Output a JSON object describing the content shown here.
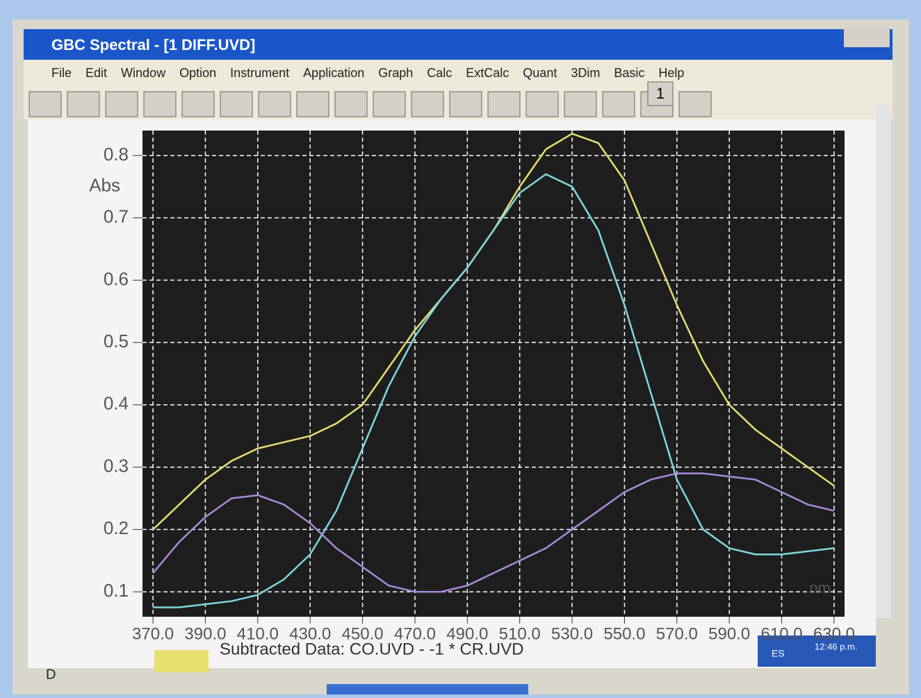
{
  "window": {
    "title": "GBC Spectral - [1 DIFF.UVD]",
    "menu": [
      "File",
      "Edit",
      "Window",
      "Option",
      "Instrument",
      "Application",
      "Graph",
      "Calc",
      "ExtCalc",
      "Quant",
      "3Dim",
      "Basic",
      "Help"
    ],
    "toolbar_number": "1",
    "status_left": "D",
    "taskbar": {
      "language": "ES",
      "clock": "12:46 p.m."
    }
  },
  "chart_data": {
    "type": "line",
    "y_label": "Abs",
    "x_label": "nm",
    "x": [
      370,
      380,
      390,
      400,
      410,
      420,
      430,
      440,
      450,
      460,
      470,
      480,
      490,
      500,
      510,
      520,
      530,
      540,
      550,
      560,
      570,
      580,
      590,
      600,
      610,
      620,
      630
    ],
    "series": [
      {
        "name": "Subtracted Data: CO.UVD - -1 * CR.UVD",
        "color": "#e8e070",
        "values": [
          0.2,
          0.24,
          0.28,
          0.31,
          0.33,
          0.34,
          0.35,
          0.37,
          0.4,
          0.46,
          0.52,
          0.57,
          0.62,
          0.68,
          0.75,
          0.81,
          0.835,
          0.82,
          0.76,
          0.66,
          0.56,
          0.47,
          0.4,
          0.36,
          0.33,
          0.3,
          0.27
        ]
      },
      {
        "color": "#7fd8e0",
        "values": [
          0.075,
          0.075,
          0.08,
          0.085,
          0.095,
          0.12,
          0.16,
          0.23,
          0.33,
          0.43,
          0.51,
          0.57,
          0.62,
          0.68,
          0.74,
          0.77,
          0.75,
          0.68,
          0.56,
          0.42,
          0.28,
          0.2,
          0.17,
          0.16,
          0.16,
          0.165,
          0.17
        ]
      },
      {
        "color": "#a98be0",
        "values": [
          0.13,
          0.18,
          0.22,
          0.25,
          0.255,
          0.24,
          0.21,
          0.17,
          0.14,
          0.11,
          0.1,
          0.1,
          0.11,
          0.13,
          0.15,
          0.17,
          0.2,
          0.23,
          0.26,
          0.28,
          0.29,
          0.29,
          0.285,
          0.28,
          0.26,
          0.24,
          0.23
        ]
      }
    ],
    "xlim": [
      366,
      634
    ],
    "ylim": [
      0.06,
      0.84
    ],
    "xticks": [
      {
        "value": 370,
        "label": "370.0"
      },
      {
        "value": 390,
        "label": "390.0"
      },
      {
        "value": 410,
        "label": "410.0"
      },
      {
        "value": 430,
        "label": "430.0"
      },
      {
        "value": 450,
        "label": "450.0"
      },
      {
        "value": 470,
        "label": "470.0"
      },
      {
        "value": 490,
        "label": "490.0"
      },
      {
        "value": 510,
        "label": "510.0"
      },
      {
        "value": 530,
        "label": "530.0"
      },
      {
        "value": 550,
        "label": "550.0"
      },
      {
        "value": 570,
        "label": "570.0"
      },
      {
        "value": 590,
        "label": "590.0"
      },
      {
        "value": 610,
        "label": "610.0"
      },
      {
        "value": 630,
        "label": "630.0"
      }
    ],
    "yticks": [
      0.1,
      0.2,
      0.3,
      0.4,
      0.5,
      0.6,
      0.7,
      0.8
    ],
    "grid": true,
    "background": "#1e1e1e"
  }
}
